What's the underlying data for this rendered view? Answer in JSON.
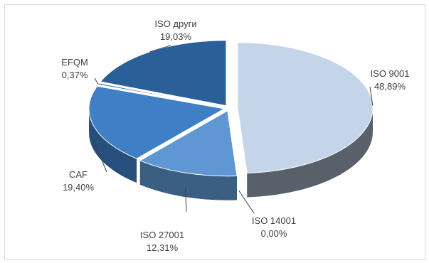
{
  "chart_data": {
    "type": "pie",
    "style": "3d-exploded",
    "slices": [
      {
        "label": "ISO 9001",
        "value_text": "48,89%",
        "value": 48.89,
        "color": "#c4d5ea"
      },
      {
        "label": "ISO 14001",
        "value_text": "0,00%",
        "value": 0.0,
        "color": "#aac4e4"
      },
      {
        "label": "ISO 27001",
        "value_text": "12,31%",
        "value": 12.31,
        "color": "#5f97d4"
      },
      {
        "label": "CAF",
        "value_text": "19,40%",
        "value": 19.4,
        "color": "#3f7fc6"
      },
      {
        "label": "EFQM",
        "value_text": "0,37%",
        "value": 0.37,
        "color": "#336aa8"
      },
      {
        "label": "ISO други",
        "value_text": "19,03%",
        "value": 19.03,
        "color": "#2a5f99"
      }
    ]
  }
}
